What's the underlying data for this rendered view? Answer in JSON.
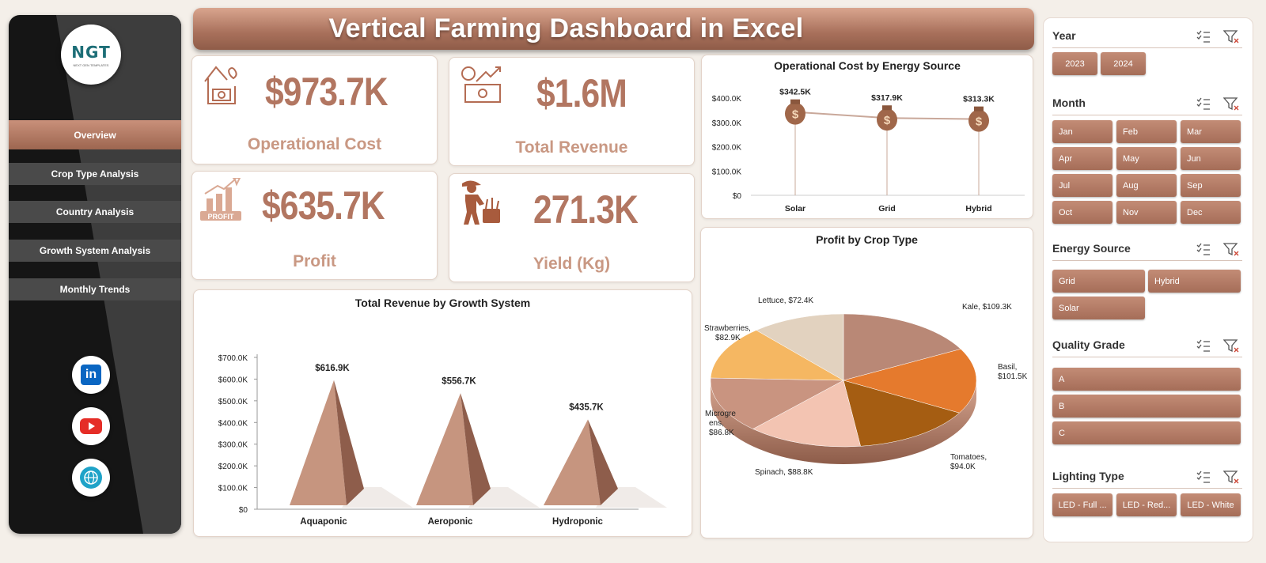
{
  "header": {
    "title": "Vertical Farming Dashboard in Excel"
  },
  "logo": {
    "text": "NGT",
    "subtext": "NEXT GEN TEMPLATES"
  },
  "nav": [
    {
      "label": "Overview",
      "active": true
    },
    {
      "label": "Crop Type Analysis"
    },
    {
      "label": "Country Analysis"
    },
    {
      "label": "Growth System Analysis"
    },
    {
      "label": "Monthly Trends"
    }
  ],
  "social": {
    "linkedin": "in"
  },
  "kpis": {
    "operational_cost": {
      "value": "$973.7K",
      "label": "Operational Cost"
    },
    "total_revenue": {
      "value": "$1.6M",
      "label": "Total Revenue"
    },
    "profit": {
      "value": "$635.7K",
      "label": "Profit",
      "icon_text": "PROFIT"
    },
    "yield": {
      "value": "271.3K",
      "label": "Yield (Kg)"
    }
  },
  "chart_data": [
    {
      "id": "energy",
      "type": "line",
      "title": "Operational Cost by Energy Source",
      "categories": [
        "Solar",
        "Grid",
        "Hybrid"
      ],
      "values": [
        342.5,
        317.9,
        313.3
      ],
      "data_labels": [
        "$342.5K",
        "$317.9K",
        "$313.3K"
      ],
      "yticks": [
        "$0",
        "$100.0K",
        "$200.0K",
        "$300.0K",
        "$400.0K"
      ],
      "ylim": [
        0,
        400
      ]
    },
    {
      "id": "growth",
      "type": "bar",
      "title": "Total Revenue by Growth System",
      "categories": [
        "Aquaponic",
        "Aeroponic",
        "Hydroponic"
      ],
      "values": [
        616.9,
        556.7,
        435.7
      ],
      "data_labels": [
        "$616.9K",
        "$556.7K",
        "$435.7K"
      ],
      "yticks": [
        "$0",
        "$100.0K",
        "$200.0K",
        "$300.0K",
        "$400.0K",
        "$500.0K",
        "$600.0K",
        "$700.0K"
      ],
      "ylim": [
        0,
        700
      ]
    },
    {
      "id": "crop",
      "type": "pie",
      "title": "Profit by Crop Type",
      "slices": [
        {
          "name": "Kale",
          "value": 109.3,
          "label": "Kale, $109.3K",
          "color": "#b98876"
        },
        {
          "name": "Basil",
          "value": 101.5,
          "label": "Basil, $101.5K",
          "color": "#e57a2d"
        },
        {
          "name": "Tomatoes",
          "value": 94.0,
          "label": "Tomatoes, $94.0K",
          "color": "#a55d12"
        },
        {
          "name": "Spinach",
          "value": 88.8,
          "label": "Spinach, $88.8K",
          "color": "#f3c4b2"
        },
        {
          "name": "Microgreens",
          "value": 86.8,
          "label": "Microgreens, $86.8K",
          "color": "#c99480"
        },
        {
          "name": "Strawberries",
          "value": 82.9,
          "label": "Strawberries, $82.9K",
          "color": "#f5b762"
        },
        {
          "name": "Lettuce",
          "value": 72.4,
          "label": "Lettuce, $72.4K",
          "color": "#e2d2bf"
        }
      ],
      "label_text": {
        "kale": "Kale, $109.3K",
        "basil_1": "Basil,",
        "basil_2": "$101.5K",
        "tomatoes_1": "Tomatoes,",
        "tomatoes_2": "$94.0K",
        "spinach": "Spinach, $88.8K",
        "micro_1": "Microgre",
        "micro_2": "ens,",
        "micro_3": "$86.8K",
        "straw_1": "Strawberries,",
        "straw_2": "$82.9K",
        "lettuce": "Lettuce, $72.4K"
      }
    }
  ],
  "slicers": {
    "year": {
      "title": "Year",
      "options": [
        "2023",
        "2024"
      ]
    },
    "month": {
      "title": "Month",
      "options": [
        "Jan",
        "Feb",
        "Mar",
        "Apr",
        "May",
        "Jun",
        "Jul",
        "Aug",
        "Sep",
        "Oct",
        "Nov",
        "Dec"
      ]
    },
    "energy": {
      "title": "Energy Source",
      "options": [
        "Grid",
        "Hybrid",
        "Solar"
      ]
    },
    "quality": {
      "title": "Quality Grade",
      "options": [
        "A",
        "B",
        "C"
      ]
    },
    "lighting": {
      "title": "Lighting Type",
      "options": [
        "LED - Full ...",
        "LED - Red...",
        "LED - White"
      ]
    }
  },
  "colors": {
    "accent": "#b27661",
    "header": "#a8705b",
    "sidebar": "#151515"
  }
}
